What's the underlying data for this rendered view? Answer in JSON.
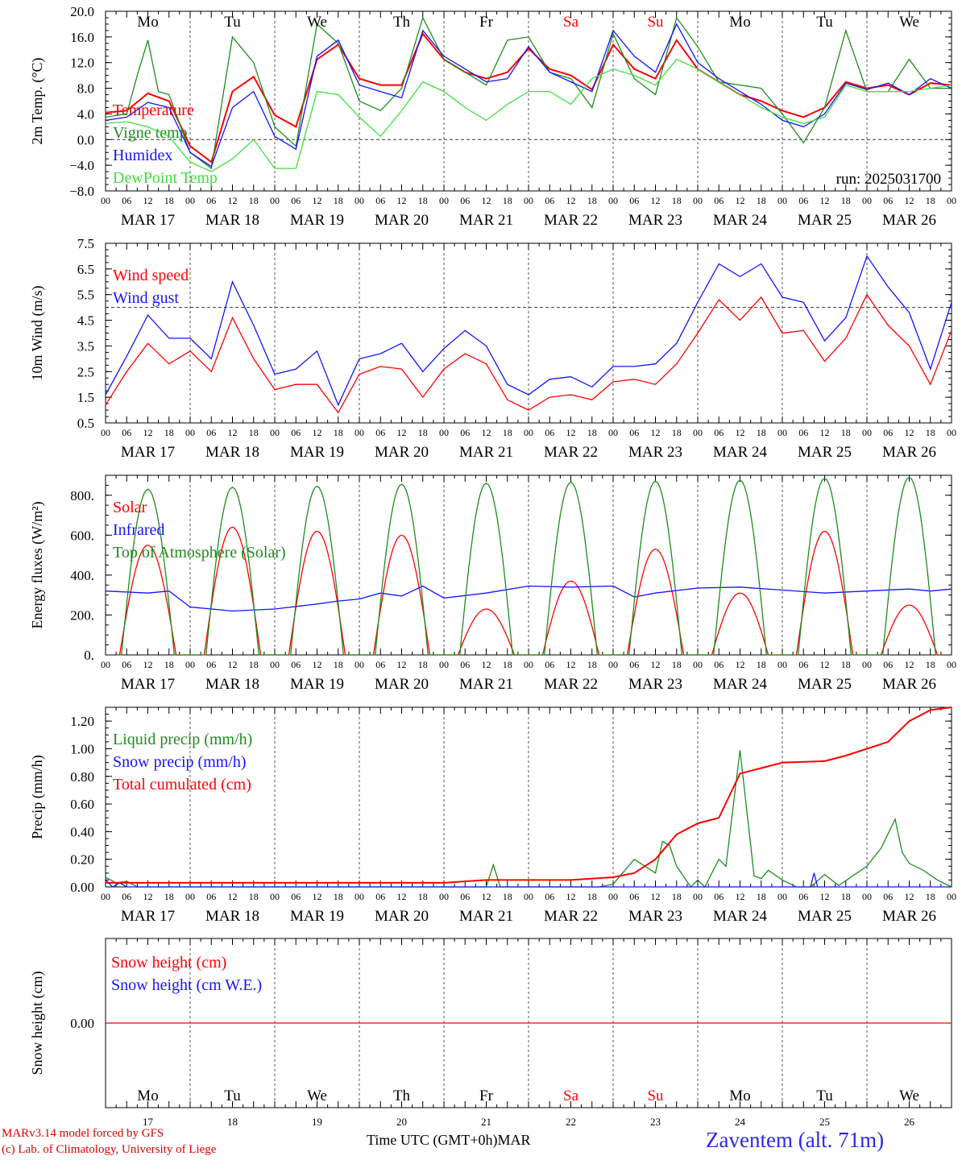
{
  "days": [
    "MAR 17",
    "MAR 18",
    "MAR 19",
    "MAR 20",
    "MAR 21",
    "MAR 22",
    "MAR 23",
    "MAR 24",
    "MAR 25",
    "MAR 26"
  ],
  "weekdays": [
    {
      "label": "Mo",
      "color": "#000000"
    },
    {
      "label": "Tu",
      "color": "#000000"
    },
    {
      "label": "We",
      "color": "#000000"
    },
    {
      "label": "Th",
      "color": "#000000"
    },
    {
      "label": "Fr",
      "color": "#000000"
    },
    {
      "label": "Sa",
      "color": "#ff0000"
    },
    {
      "label": "Su",
      "color": "#ff0000"
    },
    {
      "label": "Mo",
      "color": "#000000"
    },
    {
      "label": "Tu",
      "color": "#000000"
    },
    {
      "label": "We",
      "color": "#000000"
    }
  ],
  "hour_ticks": [
    "00",
    "06",
    "12",
    "18"
  ],
  "hour_tick_end": "00",
  "day_numbers": [
    "17",
    "18",
    "19",
    "20",
    "21",
    "22",
    "23",
    "24",
    "25",
    "26"
  ],
  "run_label": "run: 2025031700",
  "footer": {
    "credit_line1": "MARv3.14 model forced by GFS",
    "credit_line2": "(c) Lab. of Climatology, University of Liege",
    "xaxis_title": "Time UTC (GMT+0h)",
    "month": "MAR",
    "station": "Zaventem (alt. 71m)"
  },
  "colors": {
    "red": "#ff0000",
    "green": "#1e8c1e",
    "blue": "#1414ff",
    "light_green": "#3ee03e",
    "axis": "#000000"
  },
  "chart_data": [
    {
      "type": "line",
      "ylabel": "2m Temp. (°C)",
      "ylim": [
        -8,
        20
      ],
      "yticks": [
        "20.0",
        "16.0",
        "12.0",
        "8.0",
        "4.0",
        "0.0",
        "−4.0",
        "−8.0"
      ],
      "ytick_values": [
        20,
        16,
        12,
        8,
        4,
        0,
        -4,
        -8
      ],
      "ref_line": 0,
      "x_unit": "hours since MAR 17 00 UTC",
      "series": [
        {
          "name": "Temperature",
          "color": "#ff0000",
          "x": [
            0,
            6,
            12,
            18,
            24,
            30,
            36,
            42,
            48,
            54,
            60,
            66,
            72,
            78,
            84,
            90,
            96,
            102,
            108,
            114,
            120,
            126,
            132,
            138,
            144,
            150,
            156,
            162,
            168,
            174,
            180,
            186,
            192,
            198,
            204,
            210,
            216,
            222,
            228,
            234,
            240
          ],
          "y": [
            4.2,
            4.5,
            7.2,
            6.0,
            -1.0,
            -3.5,
            7.5,
            9.8,
            3.8,
            2.0,
            12.5,
            14.8,
            9.5,
            8.5,
            8.5,
            16.5,
            12.5,
            10.5,
            9.5,
            10.5,
            14.2,
            11.0,
            10.0,
            7.8,
            14.8,
            11.0,
            9.5,
            15.5,
            11.0,
            9.0,
            7.0,
            6.0,
            4.5,
            3.5,
            5.0,
            9.0,
            8.0,
            8.5,
            7.0,
            8.8,
            8.5
          ]
        },
        {
          "name": "Vigne temp",
          "color": "#1e8c1e",
          "x": [
            0,
            6,
            9,
            12,
            15,
            18,
            24,
            30,
            36,
            42,
            48,
            54,
            60,
            66,
            72,
            78,
            84,
            90,
            96,
            102,
            108,
            114,
            120,
            126,
            132,
            138,
            144,
            150,
            156,
            162,
            168,
            174,
            180,
            186,
            192,
            198,
            204,
            210,
            216,
            222,
            228,
            234,
            240
          ],
          "y": [
            3.5,
            4.0,
            10.0,
            15.5,
            7.5,
            7.0,
            -2.0,
            -4.5,
            16.0,
            12.0,
            2.0,
            -1.0,
            18.0,
            15.0,
            6.0,
            4.5,
            8.0,
            19.0,
            12.5,
            10.5,
            8.5,
            15.5,
            16.0,
            10.5,
            9.5,
            5.0,
            16.5,
            9.5,
            7.0,
            19.0,
            14.5,
            9.0,
            8.5,
            8.0,
            4.0,
            -0.5,
            5.0,
            17.0,
            7.5,
            7.5,
            12.5,
            8.0,
            8.0
          ]
        },
        {
          "name": "Humidex",
          "color": "#1414ff",
          "x": [
            0,
            6,
            12,
            18,
            24,
            30,
            36,
            42,
            48,
            54,
            60,
            66,
            72,
            78,
            84,
            90,
            96,
            102,
            108,
            114,
            120,
            126,
            132,
            138,
            144,
            150,
            156,
            162,
            168,
            174,
            180,
            186,
            192,
            198,
            204,
            210,
            216,
            222,
            228,
            234,
            240
          ],
          "y": [
            3.0,
            3.5,
            5.8,
            5.0,
            -2.0,
            -4.2,
            5.0,
            7.5,
            0.5,
            -1.5,
            13.0,
            15.5,
            8.5,
            7.5,
            6.5,
            17.0,
            13.0,
            11.0,
            9.0,
            9.5,
            14.5,
            10.5,
            9.0,
            7.5,
            17.0,
            13.0,
            10.5,
            18.0,
            12.0,
            9.5,
            7.5,
            5.5,
            3.0,
            2.0,
            4.0,
            8.8,
            7.8,
            8.8,
            7.0,
            9.5,
            8.0
          ]
        },
        {
          "name": "DewPoint Temp",
          "color": "#3ee03e",
          "x": [
            0,
            6,
            12,
            18,
            24,
            30,
            36,
            42,
            48,
            54,
            60,
            66,
            72,
            78,
            84,
            90,
            96,
            102,
            108,
            114,
            120,
            126,
            132,
            138,
            144,
            150,
            156,
            162,
            168,
            174,
            180,
            186,
            192,
            198,
            204,
            210,
            216,
            222,
            228,
            234,
            240
          ],
          "y": [
            2.5,
            2.8,
            2.0,
            0.5,
            -3.5,
            -5.0,
            -3.0,
            0.0,
            -4.5,
            -4.5,
            7.5,
            7.0,
            3.5,
            0.5,
            4.5,
            9.0,
            7.5,
            5.0,
            3.0,
            5.5,
            7.5,
            7.5,
            5.5,
            9.5,
            11.0,
            10.0,
            8.5,
            12.5,
            11.0,
            9.0,
            7.0,
            5.0,
            3.5,
            2.5,
            3.5,
            8.5,
            7.5,
            7.5,
            7.5,
            8.0,
            8.5
          ]
        }
      ],
      "legend_position": "left"
    },
    {
      "type": "line",
      "ylabel": "10m Wind (m/s)",
      "ylim": [
        0.5,
        7.5
      ],
      "yticks": [
        "7.5",
        "6.5",
        "5.5",
        "4.5",
        "3.5",
        "2.5",
        "1.5",
        "0.5"
      ],
      "ytick_values": [
        7.5,
        6.5,
        5.5,
        4.5,
        3.5,
        2.5,
        1.5,
        0.5
      ],
      "ref_line": 5.0,
      "x_unit": "hours since MAR 17 00 UTC",
      "series": [
        {
          "name": "Wind speed",
          "color": "#ff0000",
          "x": [
            0,
            6,
            12,
            18,
            24,
            30,
            36,
            42,
            48,
            54,
            60,
            66,
            72,
            78,
            84,
            90,
            96,
            102,
            108,
            114,
            120,
            126,
            132,
            138,
            144,
            150,
            156,
            162,
            168,
            174,
            180,
            186,
            192,
            198,
            204,
            210,
            216,
            222,
            228,
            234,
            240
          ],
          "y": [
            1.2,
            2.5,
            3.6,
            2.8,
            3.3,
            2.5,
            4.6,
            3.0,
            1.8,
            2.0,
            2.0,
            0.9,
            2.4,
            2.7,
            2.6,
            1.5,
            2.6,
            3.2,
            2.8,
            1.4,
            1.0,
            1.5,
            1.6,
            1.4,
            2.1,
            2.2,
            2.0,
            2.8,
            4.0,
            5.3,
            4.5,
            5.4,
            4.0,
            4.1,
            2.9,
            3.8,
            5.5,
            4.3,
            3.5,
            2.0,
            4.1
          ]
        },
        {
          "name": "Wind gust",
          "color": "#1414ff",
          "x": [
            0,
            6,
            12,
            18,
            24,
            30,
            36,
            42,
            48,
            54,
            60,
            66,
            72,
            78,
            84,
            90,
            96,
            102,
            108,
            114,
            120,
            126,
            132,
            138,
            144,
            150,
            156,
            162,
            168,
            174,
            180,
            186,
            192,
            198,
            204,
            210,
            216,
            222,
            228,
            234,
            240
          ],
          "y": [
            1.6,
            3.1,
            4.7,
            3.8,
            3.8,
            3.0,
            6.0,
            4.3,
            2.4,
            2.6,
            3.3,
            1.2,
            3.0,
            3.2,
            3.6,
            2.5,
            3.4,
            4.1,
            3.5,
            2.0,
            1.6,
            2.2,
            2.3,
            1.9,
            2.7,
            2.7,
            2.8,
            3.6,
            5.2,
            6.7,
            6.2,
            6.7,
            5.4,
            5.2,
            3.7,
            4.6,
            7.0,
            5.8,
            4.8,
            2.6,
            5.2
          ]
        }
      ],
      "legend_position": "left"
    },
    {
      "type": "line",
      "ylabel": "Energy fluxes (W/m²)",
      "ylim": [
        0,
        900
      ],
      "yticks": [
        "800.",
        "600.",
        "400.",
        "200.",
        "0."
      ],
      "ytick_values": [
        800,
        600,
        400,
        200,
        0
      ],
      "x_unit": "hours since MAR 17 00 UTC",
      "series": [
        {
          "name": "Solar",
          "color": "#ff0000",
          "peaks": [
            {
              "day": 0,
              "peak": 550
            },
            {
              "day": 1,
              "peak": 640
            },
            {
              "day": 2,
              "peak": 620
            },
            {
              "day": 3,
              "peak": 600
            },
            {
              "day": 4,
              "peak": 230
            },
            {
              "day": 5,
              "peak": 370
            },
            {
              "day": 6,
              "peak": 530
            },
            {
              "day": 7,
              "peak": 310
            },
            {
              "day": 8,
              "peak": 620
            },
            {
              "day": 9,
              "peak": 250
            }
          ]
        },
        {
          "name": "Infrared",
          "color": "#1414ff",
          "x": [
            0,
            12,
            18,
            24,
            36,
            48,
            60,
            66,
            72,
            78,
            84,
            90,
            96,
            108,
            120,
            132,
            144,
            150,
            156,
            168,
            180,
            192,
            204,
            216,
            228,
            234,
            240
          ],
          "y": [
            320,
            310,
            320,
            240,
            220,
            230,
            255,
            270,
            280,
            310,
            295,
            345,
            285,
            310,
            345,
            340,
            345,
            290,
            310,
            335,
            340,
            325,
            310,
            320,
            330,
            320,
            330
          ]
        },
        {
          "name": "Top of Atmosphere (Solar)",
          "color": "#1e8c1e",
          "peaks": [
            {
              "day": 0,
              "peak": 830
            },
            {
              "day": 1,
              "peak": 840
            },
            {
              "day": 2,
              "peak": 845
            },
            {
              "day": 3,
              "peak": 855
            },
            {
              "day": 4,
              "peak": 860
            },
            {
              "day": 5,
              "peak": 865
            },
            {
              "day": 6,
              "peak": 870
            },
            {
              "day": 7,
              "peak": 875
            },
            {
              "day": 8,
              "peak": 885
            },
            {
              "day": 9,
              "peak": 890
            }
          ]
        }
      ],
      "legend_position": "left"
    },
    {
      "type": "line",
      "ylabel": "Precip (mm/h)",
      "ylim": [
        0,
        1.3
      ],
      "yticks": [
        "1.20",
        "1.00",
        "0.80",
        "0.60",
        "0.40",
        "0.20",
        "0.00"
      ],
      "ytick_values": [
        1.2,
        1.0,
        0.8,
        0.6,
        0.4,
        0.2,
        0.0
      ],
      "x_unit": "hours since MAR 17 00 UTC",
      "series": [
        {
          "name": "Liquid precip (mm/h)",
          "color": "#1e8c1e",
          "x": [
            0,
            3,
            6,
            9,
            12,
            96,
            108,
            110,
            112,
            126,
            140,
            144,
            150,
            156,
            158,
            160,
            162,
            166,
            168,
            170,
            174,
            176,
            180,
            184,
            186,
            188,
            192,
            196,
            200,
            204,
            208,
            216,
            220,
            224,
            226,
            228,
            232,
            236,
            240
          ],
          "y": [
            0.07,
            0.03,
            0.04,
            0.0,
            0.0,
            0.0,
            0.0,
            0.16,
            0.0,
            0.0,
            0.0,
            0.02,
            0.2,
            0.1,
            0.33,
            0.3,
            0.15,
            0.0,
            0.05,
            0.0,
            0.2,
            0.15,
            0.99,
            0.08,
            0.06,
            0.12,
            0.05,
            0.0,
            0.0,
            0.09,
            0.01,
            0.15,
            0.28,
            0.49,
            0.25,
            0.17,
            0.12,
            0.05,
            0.0
          ]
        },
        {
          "name": "Snow precip (mm/h)",
          "color": "#1414ff",
          "x": [
            0,
            2,
            4,
            6,
            186,
            200,
            201,
            202,
            240
          ],
          "y": [
            0.05,
            0.0,
            0.03,
            0.0,
            0.0,
            0.0,
            0.1,
            0.0,
            0.0
          ]
        },
        {
          "name": "Total cumulated (cm)",
          "color": "#ff0000",
          "x": [
            0,
            96,
            108,
            132,
            144,
            150,
            156,
            162,
            168,
            174,
            180,
            186,
            192,
            204,
            210,
            216,
            222,
            228,
            234,
            240
          ],
          "y": [
            0.03,
            0.03,
            0.05,
            0.05,
            0.07,
            0.1,
            0.2,
            0.38,
            0.46,
            0.5,
            0.82,
            0.86,
            0.9,
            0.91,
            0.95,
            1.0,
            1.05,
            1.2,
            1.28,
            1.3
          ]
        }
      ],
      "legend_position": "left"
    },
    {
      "type": "line",
      "ylabel": "Snow height (cm)",
      "yticks": [
        "0.00"
      ],
      "ytick_values": [
        0
      ],
      "x_unit": "hours since MAR 17 00 UTC",
      "series": [
        {
          "name": "Snow height (cm)",
          "color": "#ff0000",
          "x": [
            0,
            240
          ],
          "y": [
            0,
            0
          ]
        },
        {
          "name": "Snow height (cm W.E.)",
          "color": "#1414ff",
          "x": [],
          "y": []
        }
      ],
      "legend_position": "left"
    }
  ]
}
